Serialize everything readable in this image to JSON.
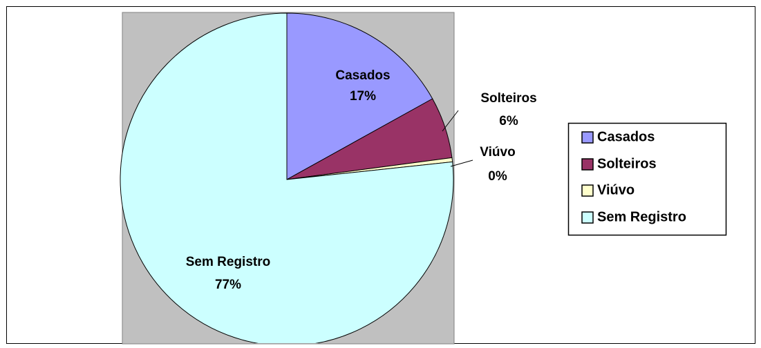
{
  "chart_data": {
    "type": "pie",
    "categories": [
      "Casados",
      "Solteiros",
      "Viúvo",
      "Sem Registro"
    ],
    "values": [
      17,
      6,
      0.4,
      77
    ],
    "value_labels": [
      "17%",
      "6%",
      "0%",
      "77%"
    ],
    "colors": [
      "#9999ff",
      "#993366",
      "#ffffcc",
      "#ccffff"
    ],
    "legend": "right"
  }
}
